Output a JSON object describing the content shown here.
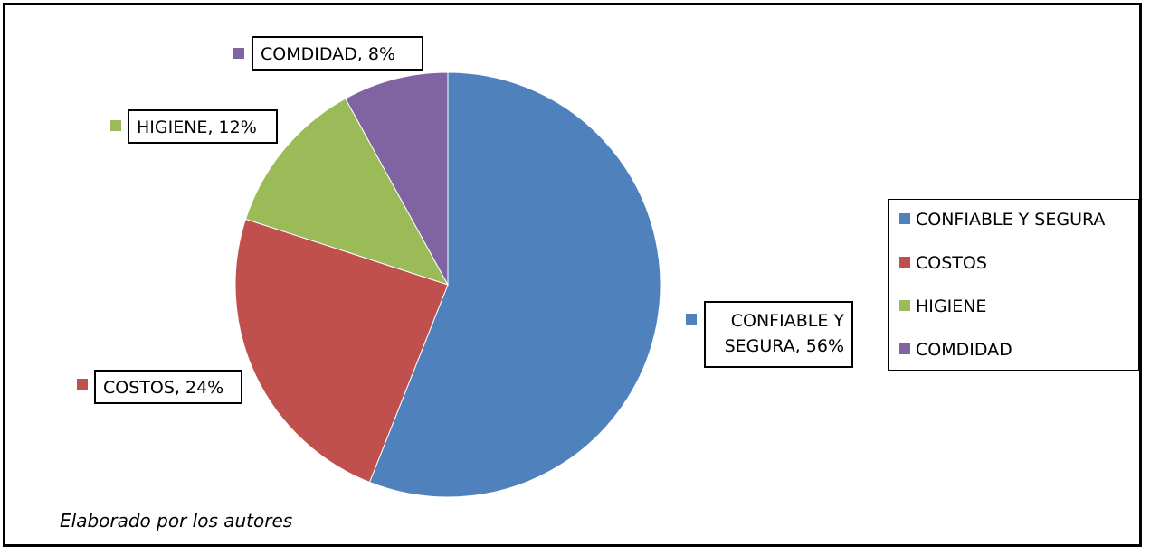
{
  "chart_data": {
    "type": "pie",
    "title": "",
    "categories": [
      "CONFIABLE Y SEGURA",
      "COSTOS",
      "HIGIENE",
      "COMDIDAD"
    ],
    "values": [
      56,
      24,
      12,
      8
    ],
    "data_labels": [
      "CONFIABLE Y SEGURA, 56%",
      "COSTOS, 24%",
      "HIGIENE, 12%",
      "COMDIDAD, 8%"
    ],
    "colors": [
      "#4f81bd",
      "#c0504d",
      "#9bbb59",
      "#8064a2"
    ],
    "legend": "right"
  },
  "note": "Elaborado por los autores"
}
